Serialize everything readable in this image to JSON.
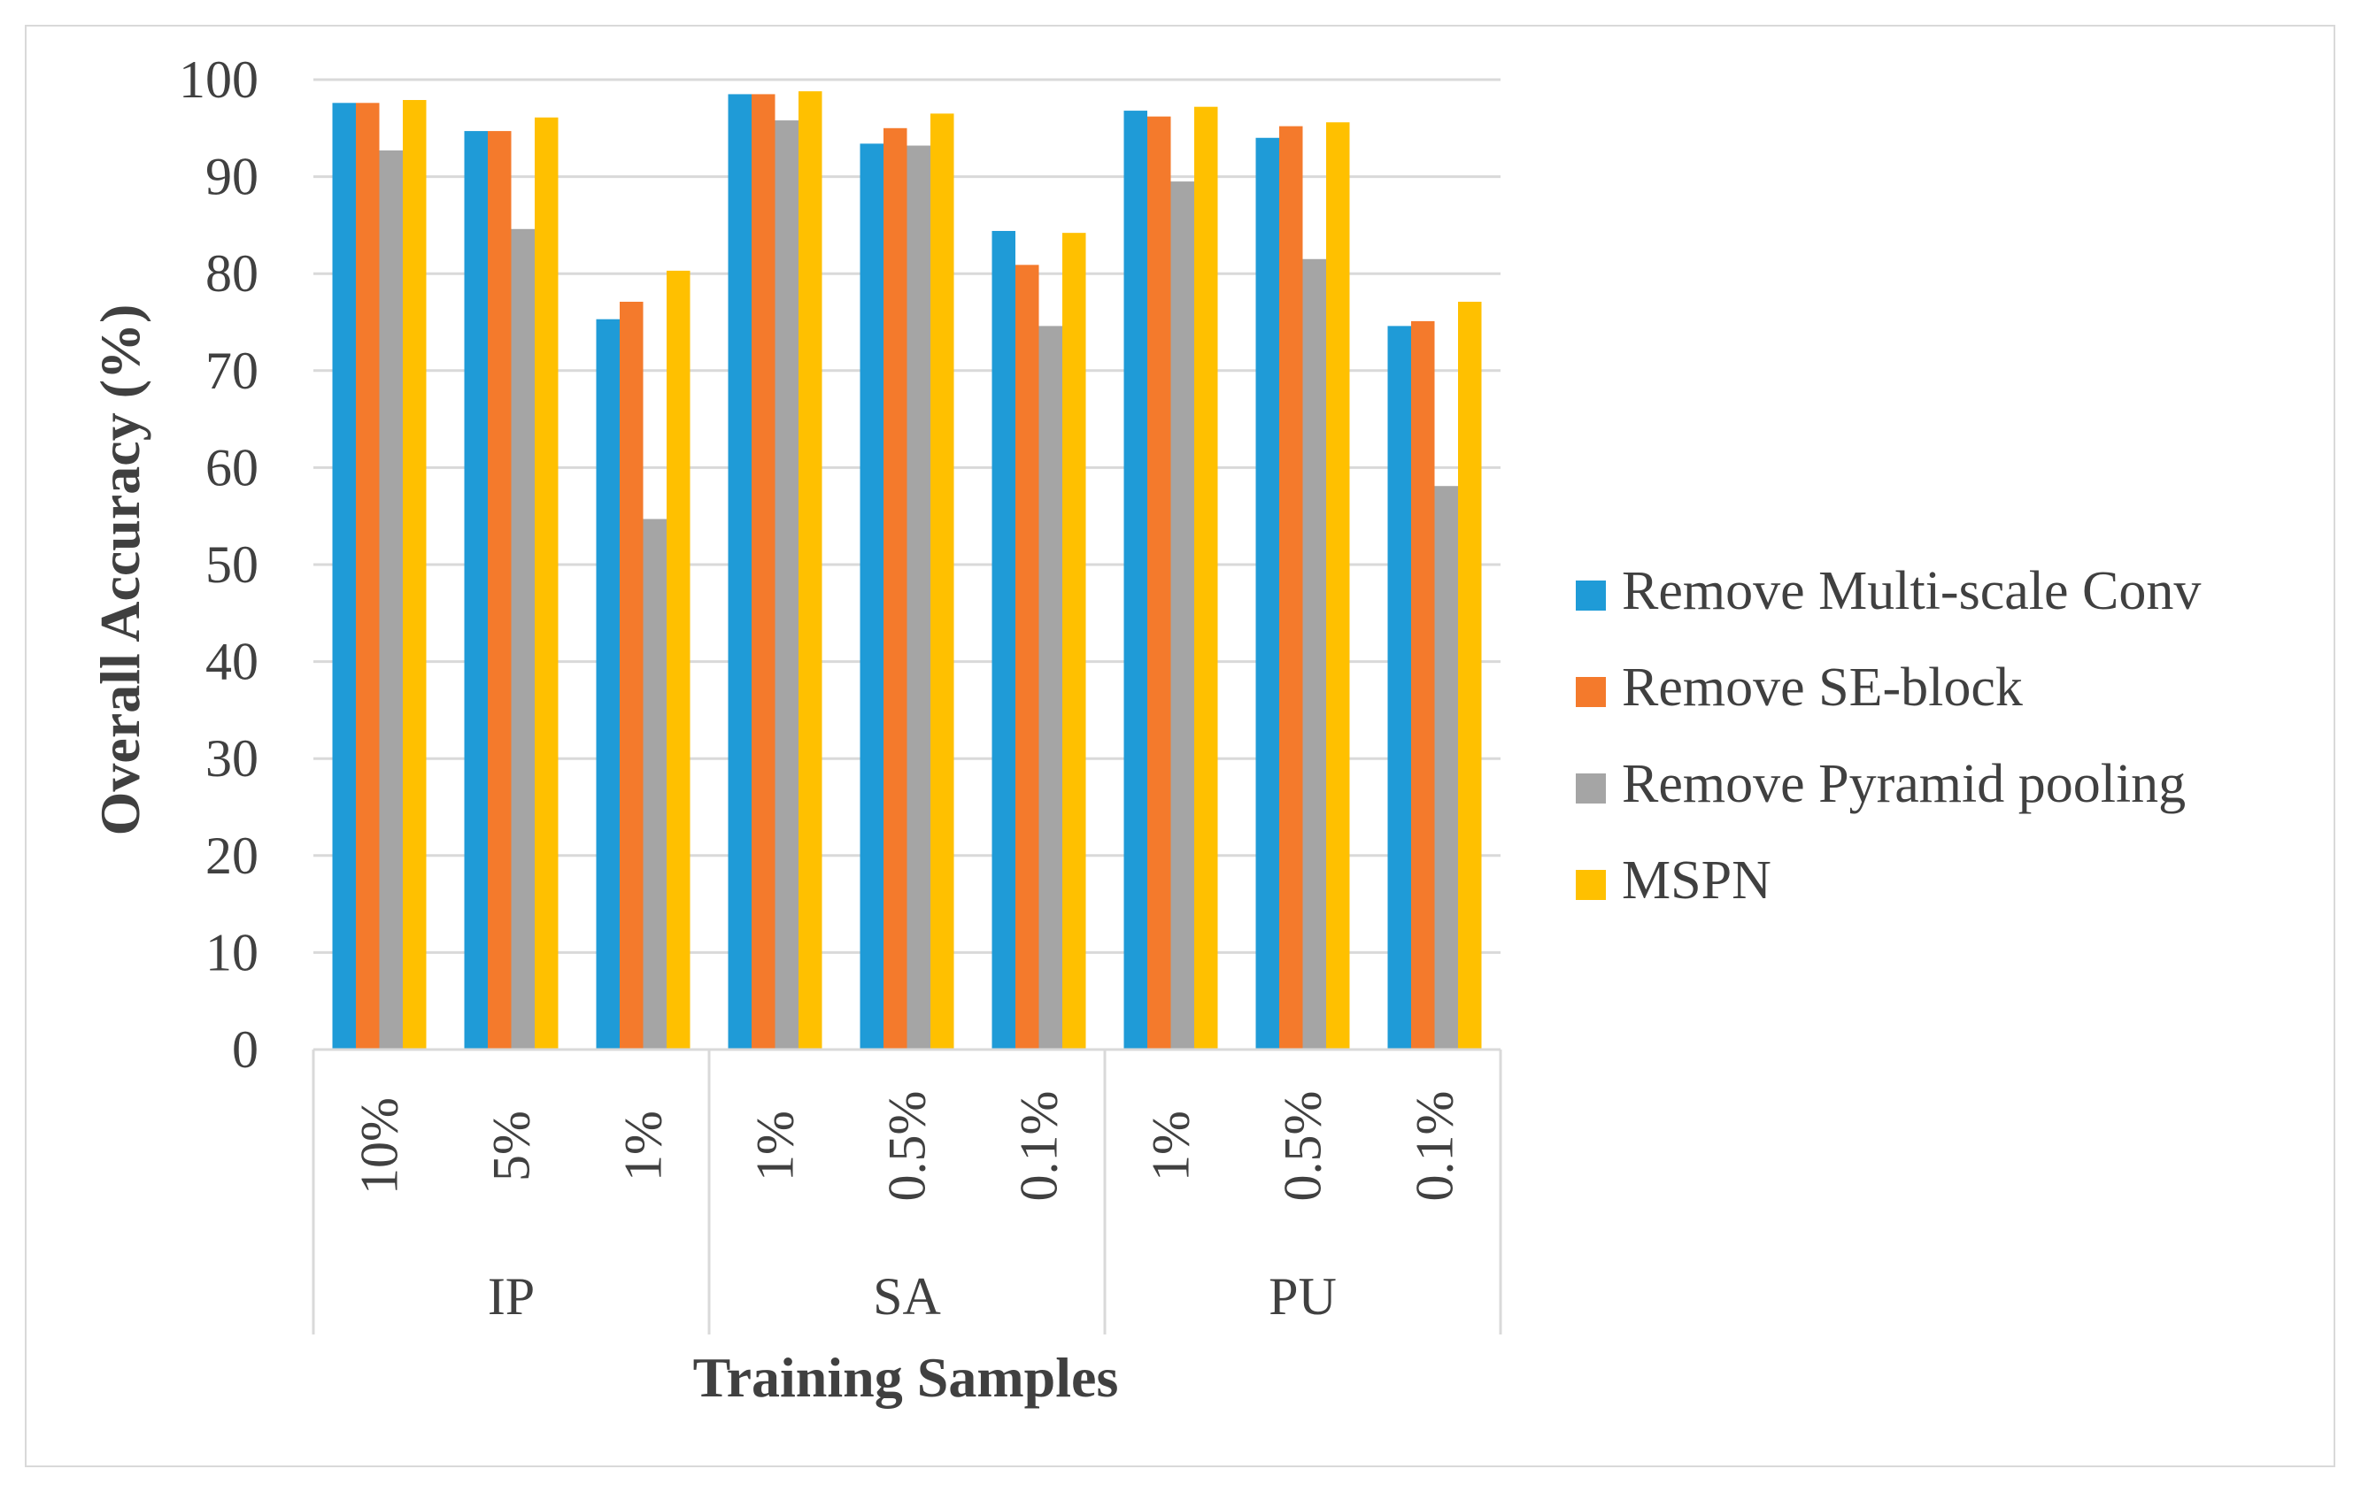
{
  "chart_data": {
    "type": "bar",
    "title": "",
    "xlabel": "Training Samples",
    "ylabel": "Overall Accuracy (%)",
    "ylim": [
      0,
      100
    ],
    "yticks": [
      "0",
      "10",
      "20",
      "30",
      "40",
      "50",
      "60",
      "70",
      "80",
      "90",
      "100"
    ],
    "grid": true,
    "legend_position": "right",
    "groups": [
      {
        "name": "IP",
        "categories": [
          "10%",
          "5%",
          "1%"
        ]
      },
      {
        "name": "SA",
        "categories": [
          "1%",
          "0.5%",
          "0.1%"
        ]
      },
      {
        "name": "PU",
        "categories": [
          "1%",
          "0.5%",
          "0.1%"
        ]
      }
    ],
    "categories": [
      "10%",
      "5%",
      "1%",
      "1%",
      "0.5%",
      "0.1%",
      "1%",
      "0.5%",
      "0.1%"
    ],
    "series": [
      {
        "name": "Remove Multi-scale Conv",
        "color": "#1f9bd7",
        "values": [
          97.6,
          94.7,
          75.3,
          98.5,
          93.4,
          84.4,
          96.8,
          94.0,
          74.6
        ]
      },
      {
        "name": "Remove SE-block",
        "color": "#f47a2c",
        "values": [
          97.6,
          94.7,
          77.1,
          98.5,
          95.0,
          80.9,
          96.2,
          95.2,
          75.1
        ]
      },
      {
        "name": "Remove Pyramid pooling",
        "color": "#a5a5a5",
        "values": [
          92.7,
          84.6,
          54.7,
          95.8,
          93.2,
          74.6,
          89.5,
          81.5,
          58.1
        ]
      },
      {
        "name": "MSPN",
        "color": "#ffc000",
        "values": [
          97.9,
          96.1,
          80.3,
          98.8,
          96.5,
          84.2,
          97.2,
          95.6,
          77.1
        ]
      }
    ]
  }
}
